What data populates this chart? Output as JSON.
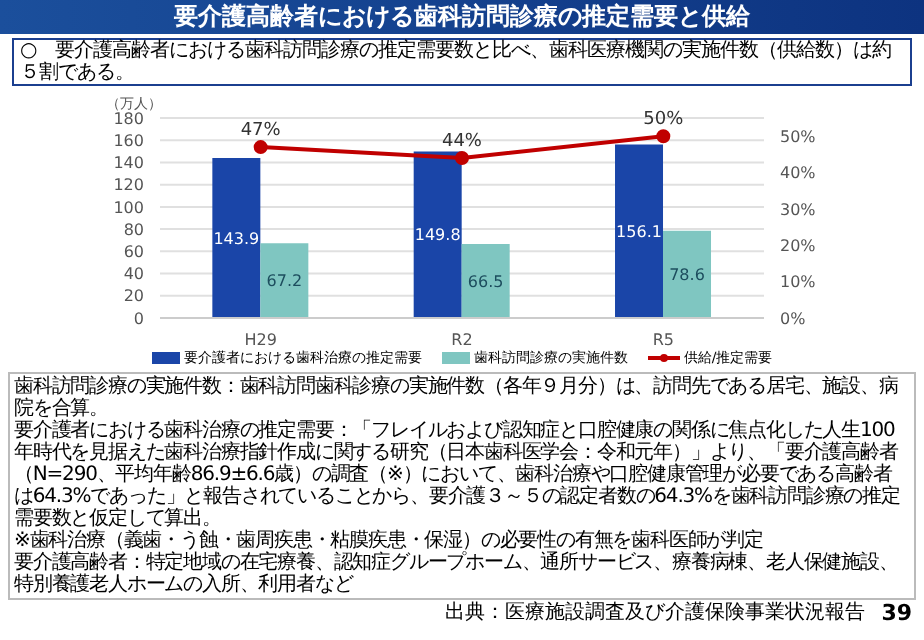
{
  "chart_data": {
    "type": "bar",
    "title": "要介護高齢者における歯科訪問診療の推定需要と供給",
    "subtitle": "○　要介護高齢者における歯科訪問診療の推定需要数と比べ、歯科医療機関の実施件数（供給数）は約５割である。",
    "ylabel": "（万人）",
    "categories": [
      "H29",
      "R2",
      "R5"
    ],
    "series": [
      {
        "name": "要介護者における歯科治療の推定需要",
        "color": "#1a45a8",
        "values": [
          143.9,
          149.8,
          156.1
        ],
        "value_labels": [
          "143.9",
          "149.8",
          "156.1"
        ]
      },
      {
        "name": "歯科訪問診療の実施件数",
        "color": "#7fc6c1",
        "values": [
          67.2,
          66.5,
          78.6
        ],
        "value_labels": [
          "67.2",
          "66.5",
          "78.6"
        ]
      },
      {
        "name": "供給/推定需要",
        "type": "line",
        "axis": "y2",
        "color": "#c00000",
        "marker": "circle",
        "values": [
          47,
          44,
          50
        ],
        "value_labels": [
          "47%",
          "44%",
          "50%"
        ]
      }
    ],
    "ylim": [
      0,
      180
    ],
    "yticks": [
      0,
      20,
      40,
      60,
      80,
      100,
      120,
      140,
      160,
      180
    ],
    "y2lim": [
      0,
      55
    ],
    "y2ticks": [
      {
        "value": 0,
        "label": "0%"
      },
      {
        "value": 10,
        "label": "10%"
      },
      {
        "value": 20,
        "label": "20%"
      },
      {
        "value": 30,
        "label": "30%"
      },
      {
        "value": 40,
        "label": "40%"
      },
      {
        "value": 50,
        "label": "50%"
      }
    ],
    "grid": "y",
    "legend": "bottom",
    "annotations": [
      "歯科訪問診療の実施件数：歯科訪問歯科診療の実施件数（各年９月分）は、訪問先である居宅、施設、病院を合算。",
      "要介護者における歯科治療の推定需要：「フレイルおよび認知症と口腔健康の関係に焦点化した人生100年時代を見据えた歯科治療指針作成に関する研究（日本歯科医学会：令和元年）」より、「要介護高齢者（N=290、平均年齢86.9±6.6歳）の調査（※）において、歯科治療や口腔健康管理が必要である高齢者は64.3%であった」と報告されていることから、要介護３～５の認定者数の64.3%を歯科訪問診療の推定需要数と仮定して算出。",
      "※歯科治療（義歯・う蝕・歯周疾患・粘膜疾患・保湿）の必要性の有無を歯科医師が判定",
      "要介護高齢者：特定地域の在宅療養、認知症グループホーム、通所サービス、療養病棟、老人保健施設、特別養護老人ホームの入所、利用者など",
      "出典：医療施設調査及び介護保険事業状況報告",
      "39"
    ]
  }
}
